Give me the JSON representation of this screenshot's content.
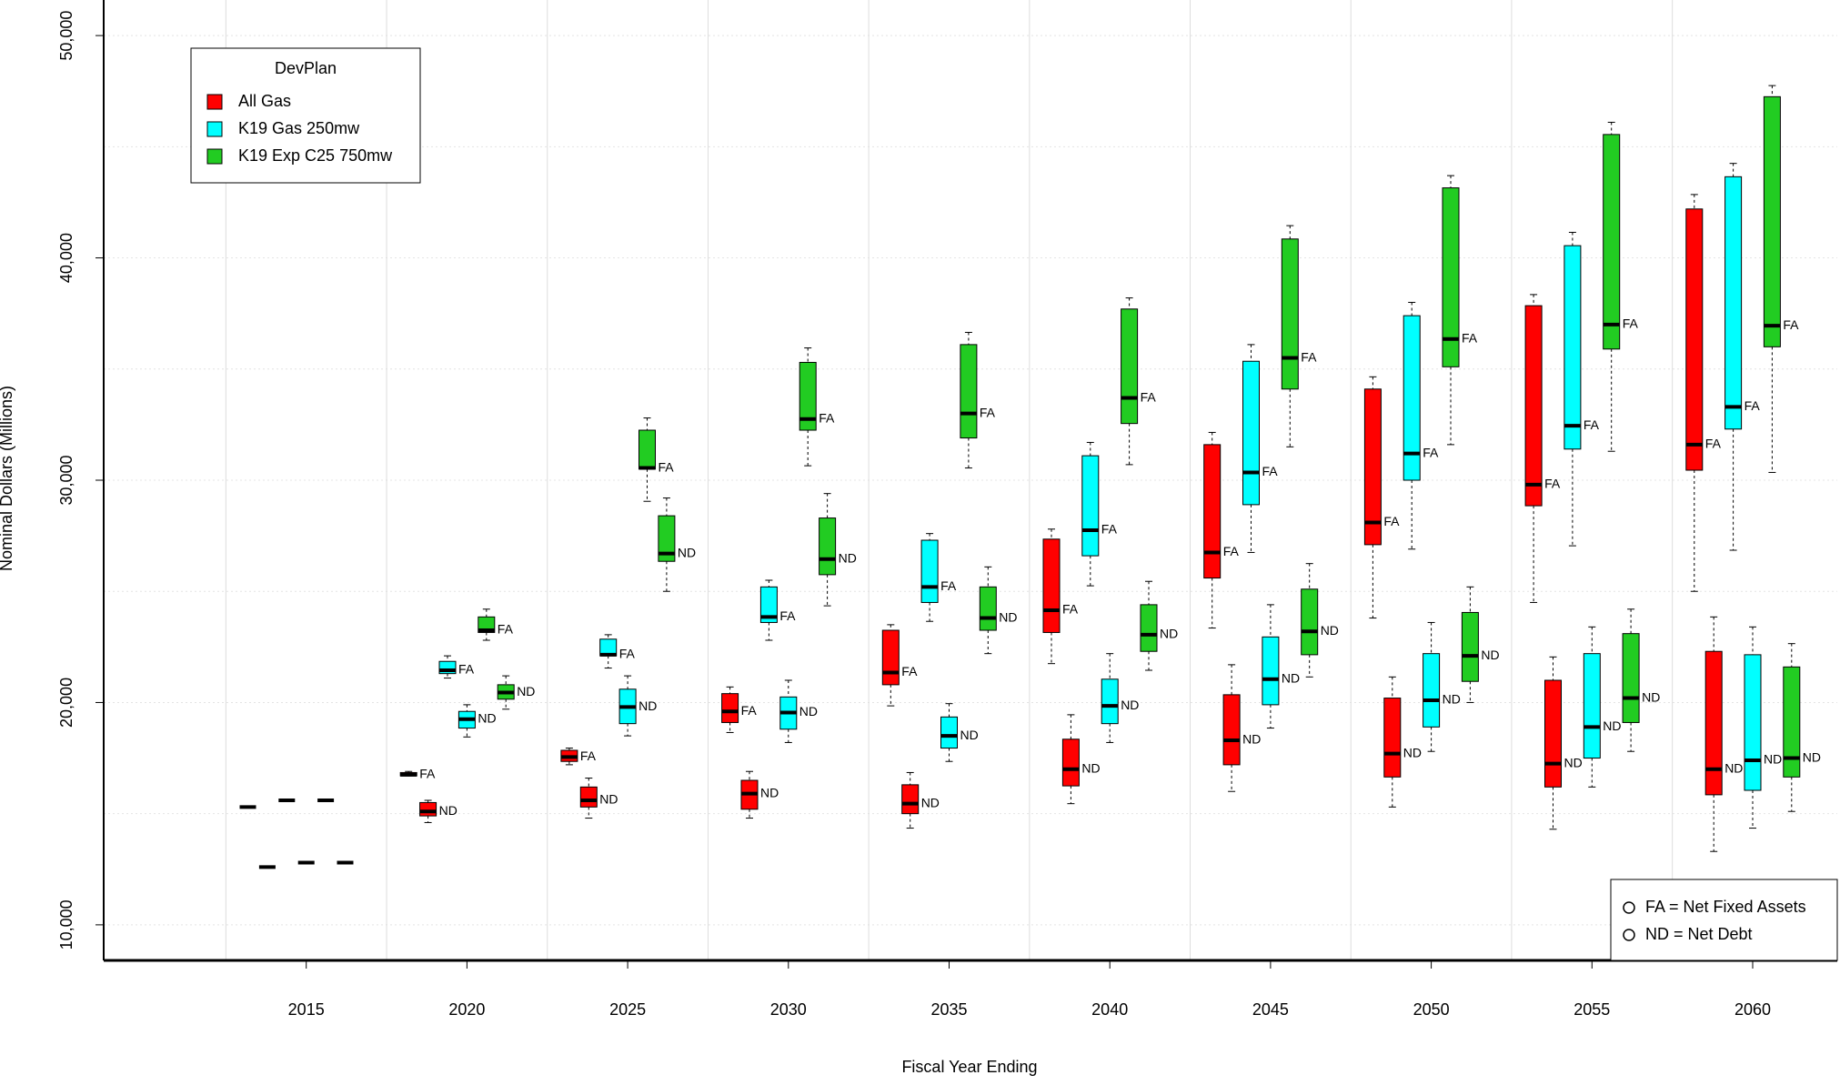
{
  "chart_data": {
    "type": "box",
    "x_label": "Fiscal Year Ending",
    "y_label": "Nominal Dollars (Millions)",
    "categories": [
      "2015",
      "2020",
      "2025",
      "2030",
      "2035",
      "2040",
      "2045",
      "2050",
      "2055",
      "2060"
    ],
    "legend_title": "DevPlan",
    "legend": "top left",
    "metric_labels": [
      "FA",
      "ND"
    ],
    "metric_legend": [
      "FA = Net Fixed Assets",
      "ND = Net Debt"
    ],
    "metric_legend_position": "bottom right",
    "ylim": [
      8400,
      51600
    ],
    "yticks": [
      {
        "value": 10000,
        "label": "10,000"
      },
      {
        "value": 20000,
        "label": "20,000"
      },
      {
        "value": 30000,
        "label": "30,000"
      },
      {
        "value": 40000,
        "label": "40,000"
      },
      {
        "value": 50000,
        "label": "50,000"
      }
    ],
    "grid": true,
    "ygrid": [
      10000,
      15000,
      20000,
      25000,
      30000,
      35000,
      40000,
      45000,
      50000
    ],
    "series": [
      {
        "name": "All Gas",
        "color": "#ff0000",
        "FA": [
          [
            15300,
            15300,
            15300,
            15300,
            15300
          ],
          [
            16700,
            16700,
            16750,
            16850,
            16900
          ],
          [
            17200,
            17350,
            17550,
            17850,
            17950
          ],
          [
            18650,
            19100,
            19600,
            20400,
            20700
          ],
          [
            19850,
            20800,
            21350,
            23250,
            23500
          ],
          [
            21750,
            23150,
            24150,
            27350,
            27800
          ],
          [
            23350,
            25600,
            26750,
            31600,
            32150
          ],
          [
            23800,
            27100,
            28100,
            34100,
            34650
          ],
          [
            24500,
            28850,
            29800,
            37850,
            38350
          ],
          [
            25000,
            30450,
            31600,
            42200,
            42850
          ]
        ],
        "ND": [
          [
            12600,
            12600,
            12600,
            12600,
            12600
          ],
          [
            14600,
            14900,
            15100,
            15500,
            15600
          ],
          [
            14800,
            15300,
            15600,
            16200,
            16600
          ],
          [
            14800,
            15200,
            15900,
            16500,
            16900
          ],
          [
            14350,
            15000,
            15450,
            16300,
            16850
          ],
          [
            15450,
            16250,
            17000,
            18350,
            19450
          ],
          [
            16000,
            17200,
            18300,
            20350,
            21700
          ],
          [
            15300,
            16650,
            17700,
            20200,
            21150
          ],
          [
            14300,
            16200,
            17250,
            21000,
            22050
          ],
          [
            13300,
            15850,
            17000,
            22300,
            23850
          ]
        ]
      },
      {
        "name": "K19 Gas 250mw",
        "color": "#00ffff",
        "FA": [
          [
            15600,
            15600,
            15600,
            15600,
            15600
          ],
          [
            21100,
            21300,
            21450,
            21850,
            22100
          ],
          [
            21550,
            22100,
            22150,
            22850,
            23050
          ],
          [
            22800,
            23600,
            23850,
            25200,
            25500
          ],
          [
            23650,
            24500,
            25200,
            27300,
            27600
          ],
          [
            25250,
            26600,
            27750,
            31100,
            31700
          ],
          [
            26750,
            28900,
            30350,
            35350,
            36100
          ],
          [
            26900,
            30000,
            31200,
            37400,
            38000
          ],
          [
            27050,
            31400,
            32450,
            40550,
            41150
          ],
          [
            26850,
            32300,
            33300,
            43650,
            44250
          ]
        ],
        "ND": [
          [
            12800,
            12800,
            12800,
            12800,
            12800
          ],
          [
            18450,
            18850,
            19250,
            19600,
            19900
          ],
          [
            18500,
            19050,
            19800,
            20600,
            21200
          ],
          [
            18200,
            18800,
            19550,
            20250,
            21000
          ],
          [
            17350,
            17950,
            18500,
            19350,
            19950
          ],
          [
            18200,
            19050,
            19850,
            21050,
            22200
          ],
          [
            18850,
            19900,
            21050,
            22950,
            24400
          ],
          [
            17800,
            18900,
            20100,
            22200,
            23600
          ],
          [
            16200,
            17500,
            18900,
            22200,
            23400
          ],
          [
            14350,
            16050,
            17400,
            22150,
            23400
          ]
        ]
      },
      {
        "name": "K19 Exp C25 750mw",
        "color": "#22cc22",
        "FA": [
          [
            15600,
            15600,
            15600,
            15600,
            15600
          ],
          [
            22800,
            23150,
            23250,
            23850,
            24200
          ],
          [
            29050,
            30500,
            30550,
            32250,
            32800
          ],
          [
            30650,
            32250,
            32750,
            35300,
            35950
          ],
          [
            30550,
            31900,
            33000,
            36100,
            36650
          ],
          [
            30700,
            32550,
            33700,
            37700,
            38200
          ],
          [
            31500,
            34100,
            35500,
            40850,
            41450
          ],
          [
            31600,
            35100,
            36350,
            43150,
            43700
          ],
          [
            31300,
            35900,
            37000,
            45550,
            46100
          ],
          [
            30350,
            36000,
            36950,
            47250,
            47750
          ]
        ],
        "ND": [
          [
            12800,
            12800,
            12800,
            12800,
            12800
          ],
          [
            19700,
            20150,
            20450,
            20800,
            21200
          ],
          [
            25000,
            26350,
            26700,
            28400,
            29200
          ],
          [
            24350,
            25750,
            26450,
            28300,
            29400
          ],
          [
            22200,
            23250,
            23800,
            25200,
            26100
          ],
          [
            21450,
            22300,
            23050,
            24400,
            25450
          ],
          [
            21150,
            22150,
            23200,
            25100,
            26250
          ],
          [
            20000,
            20950,
            22100,
            24050,
            25200
          ],
          [
            17800,
            19100,
            20200,
            23100,
            24200
          ],
          [
            15100,
            16650,
            17500,
            21600,
            22650
          ]
        ]
      }
    ]
  }
}
